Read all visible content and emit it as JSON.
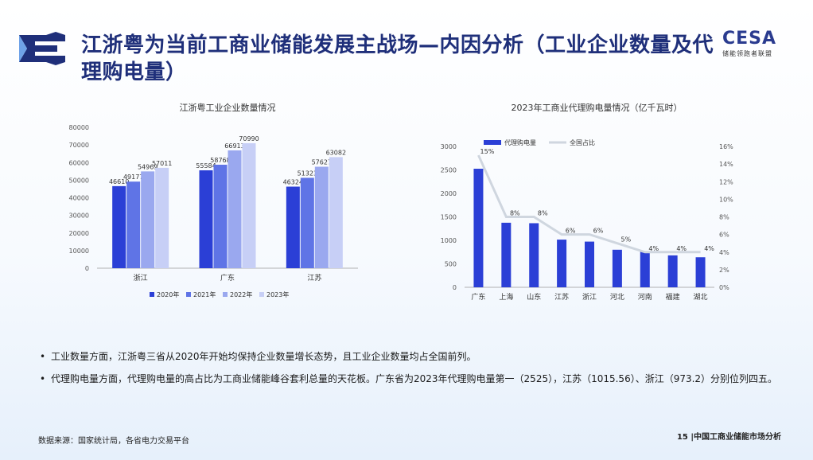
{
  "header": {
    "title": "江浙粤为当前工商业储能发展主战场—内因分析（工业企业数量及代理购电量）",
    "logo_left_icon": "e-logo-icon",
    "logo_right_brand": "CESA",
    "logo_right_sub": "储能领跑者联盟"
  },
  "colors": {
    "series_2020": "#2b3fd6",
    "series_2021": "#5f74e6",
    "series_2022": "#9aa8ef",
    "series_2023": "#c7cff6",
    "bar2": "#2b3fd6",
    "line2": "#cfd6df",
    "title": "#1f2f7a"
  },
  "chart_data": [
    {
      "type": "bar",
      "title": "江浙粤工业企业数量情况",
      "categories": [
        "浙江",
        "广东",
        "江苏"
      ],
      "series": [
        {
          "name": "2020年",
          "values": [
            46610,
            55584,
            46324
          ]
        },
        {
          "name": "2021年",
          "values": [
            49177,
            58768,
            51323
          ]
        },
        {
          "name": "2022年",
          "values": [
            54969,
            66913,
            57627
          ]
        },
        {
          "name": "2023年",
          "values": [
            57011,
            70990,
            63082
          ]
        }
      ],
      "ylim": [
        0,
        80000
      ],
      "yticks": [
        "0",
        "10000",
        "20000",
        "30000",
        "40000",
        "50000",
        "60000",
        "70000",
        "80000"
      ],
      "legend": "bottom",
      "grid": false
    },
    {
      "type": "bar+line",
      "title": "2023年工商业代理购电量情况（亿千瓦时）",
      "categories": [
        "广东",
        "上海",
        "山东",
        "江苏",
        "浙江",
        "河北",
        "河南",
        "福建",
        "湖北"
      ],
      "series": [
        {
          "name": "代理购电量",
          "type": "bar",
          "values": [
            2525,
            1375,
            1365,
            1015.56,
            973.2,
            800,
            770,
            680,
            640
          ]
        },
        {
          "name": "全国占比",
          "type": "line",
          "values": [
            15,
            8,
            8,
            6,
            6,
            5,
            4,
            4,
            4
          ],
          "labels": [
            "15%",
            "8%",
            "8%",
            "6%",
            "6%",
            "5%",
            "4%",
            "4%",
            "4%"
          ]
        }
      ],
      "ylim": [
        0,
        3000
      ],
      "yticks": [
        "0",
        "500",
        "1000",
        "1500",
        "2000",
        "2500",
        "3000"
      ],
      "y2lim": [
        0,
        16
      ],
      "y2ticks": [
        "0%",
        "2%",
        "4%",
        "6%",
        "8%",
        "10%",
        "12%",
        "14%",
        "16%"
      ],
      "legend": "top-left",
      "grid": false
    }
  ],
  "bullets": [
    "工业数量方面，江浙粤三省从2020年开始均保持企业数量增长态势，且工业企业数量均占全国前列。",
    "代理购电量方面，代理购电量的高占比为工商业储能峰谷套利总量的天花板。广东省为2023年代理购电量第一（2525），江苏（1015.56）、浙江（973.2）分别位列四五。"
  ],
  "footer": {
    "source": "数据来源：国家统计局，各省电力交易平台",
    "page": "15 |中国工商业储能市场分析"
  }
}
